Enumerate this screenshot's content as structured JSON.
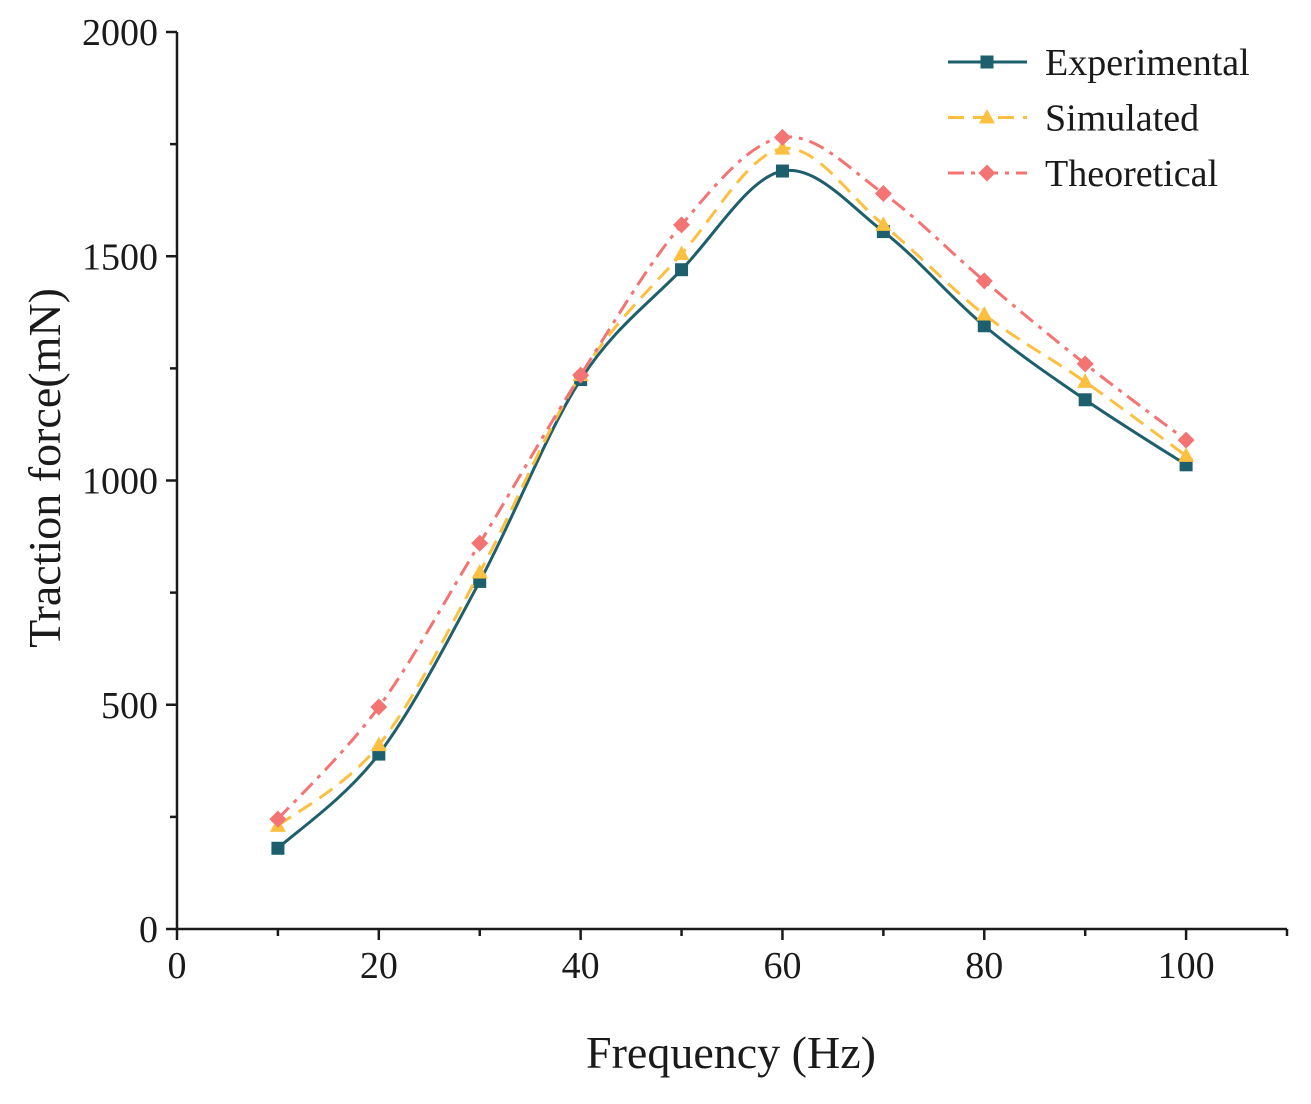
{
  "chart_data": {
    "type": "line",
    "title": "",
    "xlabel": "Frequency (Hz)",
    "ylabel": "Traction force(mN)",
    "xlim": [
      0,
      110
    ],
    "ylim": [
      0,
      2000
    ],
    "x_ticks": [
      0,
      20,
      40,
      60,
      80,
      100
    ],
    "x_tick_labels": [
      "0",
      "20",
      "40",
      "60",
      "80",
      "100"
    ],
    "x_minor_step": 10,
    "y_ticks": [
      0,
      500,
      1000,
      1500,
      2000
    ],
    "y_tick_labels": [
      "0",
      "500",
      "1000",
      "1500",
      "2000"
    ],
    "y_minor_step": 250,
    "grid": false,
    "legend_position": "top-right",
    "x": [
      10,
      20,
      30,
      40,
      50,
      60,
      70,
      80,
      90,
      100
    ],
    "series": [
      {
        "name": "Experimental",
        "color": "#1d5f6c",
        "values": [
          180,
          390,
          775,
          1225,
          1470,
          1690,
          1555,
          1345,
          1180,
          1035
        ]
      },
      {
        "name": "Simulated",
        "color": "#fcc040",
        "values": [
          230,
          410,
          795,
          1235,
          1505,
          1740,
          1570,
          1370,
          1220,
          1055
        ]
      },
      {
        "name": "Theoretical",
        "color": "#f47373",
        "values": [
          245,
          495,
          860,
          1235,
          1570,
          1765,
          1640,
          1445,
          1260,
          1090
        ]
      }
    ]
  }
}
